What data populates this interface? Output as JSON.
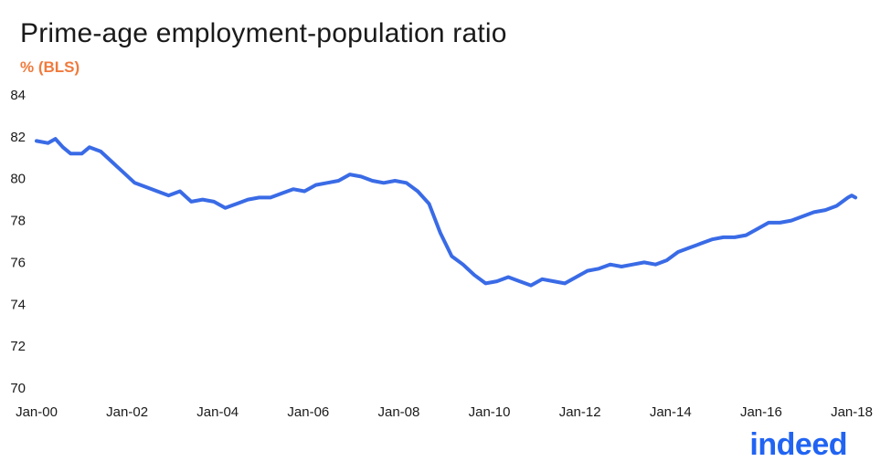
{
  "title": "Prime-age employment-population ratio",
  "subtitle": "% (BLS)",
  "brand": {
    "logo_text": "indeed",
    "color": "#2164f3"
  },
  "chart_data": {
    "type": "line",
    "title": "Prime-age employment-population ratio",
    "subtitle": "% (BLS)",
    "xlabel": "",
    "ylabel": "",
    "x_ticks": [
      "Jan-00",
      "Jan-02",
      "Jan-04",
      "Jan-06",
      "Jan-08",
      "Jan-10",
      "Jan-12",
      "Jan-14",
      "Jan-16",
      "Jan-18"
    ],
    "xlim": [
      "2000-01",
      "2018-01"
    ],
    "ylim": [
      70,
      84
    ],
    "y_ticks": [
      70,
      72,
      74,
      76,
      78,
      80,
      82,
      84
    ],
    "grid": false,
    "legend": "none",
    "series": [
      {
        "color": "#3a6be6",
        "points": [
          [
            "2000-01",
            81.8
          ],
          [
            "2000-04",
            81.7
          ],
          [
            "2000-06",
            81.9
          ],
          [
            "2000-08",
            81.5
          ],
          [
            "2000-10",
            81.2
          ],
          [
            "2001-01",
            81.2
          ],
          [
            "2001-03",
            81.5
          ],
          [
            "2001-06",
            81.3
          ],
          [
            "2001-09",
            80.8
          ],
          [
            "2001-12",
            80.3
          ],
          [
            "2002-03",
            79.8
          ],
          [
            "2002-06",
            79.6
          ],
          [
            "2002-09",
            79.4
          ],
          [
            "2002-12",
            79.2
          ],
          [
            "2003-03",
            79.4
          ],
          [
            "2003-06",
            78.9
          ],
          [
            "2003-09",
            79.0
          ],
          [
            "2003-12",
            78.9
          ],
          [
            "2004-03",
            78.6
          ],
          [
            "2004-06",
            78.8
          ],
          [
            "2004-09",
            79.0
          ],
          [
            "2004-12",
            79.1
          ],
          [
            "2005-03",
            79.1
          ],
          [
            "2005-06",
            79.3
          ],
          [
            "2005-09",
            79.5
          ],
          [
            "2005-12",
            79.4
          ],
          [
            "2006-03",
            79.7
          ],
          [
            "2006-06",
            79.8
          ],
          [
            "2006-09",
            79.9
          ],
          [
            "2006-12",
            80.2
          ],
          [
            "2007-03",
            80.1
          ],
          [
            "2007-06",
            79.9
          ],
          [
            "2007-09",
            79.8
          ],
          [
            "2007-12",
            79.9
          ],
          [
            "2008-03",
            79.8
          ],
          [
            "2008-06",
            79.4
          ],
          [
            "2008-09",
            78.8
          ],
          [
            "2008-12",
            77.4
          ],
          [
            "2009-03",
            76.3
          ],
          [
            "2009-06",
            75.9
          ],
          [
            "2009-09",
            75.4
          ],
          [
            "2009-12",
            75.0
          ],
          [
            "2010-03",
            75.1
          ],
          [
            "2010-06",
            75.3
          ],
          [
            "2010-09",
            75.1
          ],
          [
            "2010-12",
            74.9
          ],
          [
            "2011-03",
            75.2
          ],
          [
            "2011-06",
            75.1
          ],
          [
            "2011-09",
            75.0
          ],
          [
            "2011-12",
            75.3
          ],
          [
            "2012-03",
            75.6
          ],
          [
            "2012-06",
            75.7
          ],
          [
            "2012-09",
            75.9
          ],
          [
            "2012-12",
            75.8
          ],
          [
            "2013-03",
            75.9
          ],
          [
            "2013-06",
            76.0
          ],
          [
            "2013-09",
            75.9
          ],
          [
            "2013-12",
            76.1
          ],
          [
            "2014-03",
            76.5
          ],
          [
            "2014-06",
            76.7
          ],
          [
            "2014-09",
            76.9
          ],
          [
            "2014-12",
            77.1
          ],
          [
            "2015-03",
            77.2
          ],
          [
            "2015-06",
            77.2
          ],
          [
            "2015-09",
            77.3
          ],
          [
            "2015-12",
            77.6
          ],
          [
            "2016-03",
            77.9
          ],
          [
            "2016-06",
            77.9
          ],
          [
            "2016-09",
            78.0
          ],
          [
            "2016-12",
            78.2
          ],
          [
            "2017-03",
            78.4
          ],
          [
            "2017-06",
            78.5
          ],
          [
            "2017-09",
            78.7
          ],
          [
            "2017-12",
            79.1
          ],
          [
            "2018-01",
            79.2
          ],
          [
            "2018-02",
            79.1
          ]
        ]
      }
    ]
  }
}
